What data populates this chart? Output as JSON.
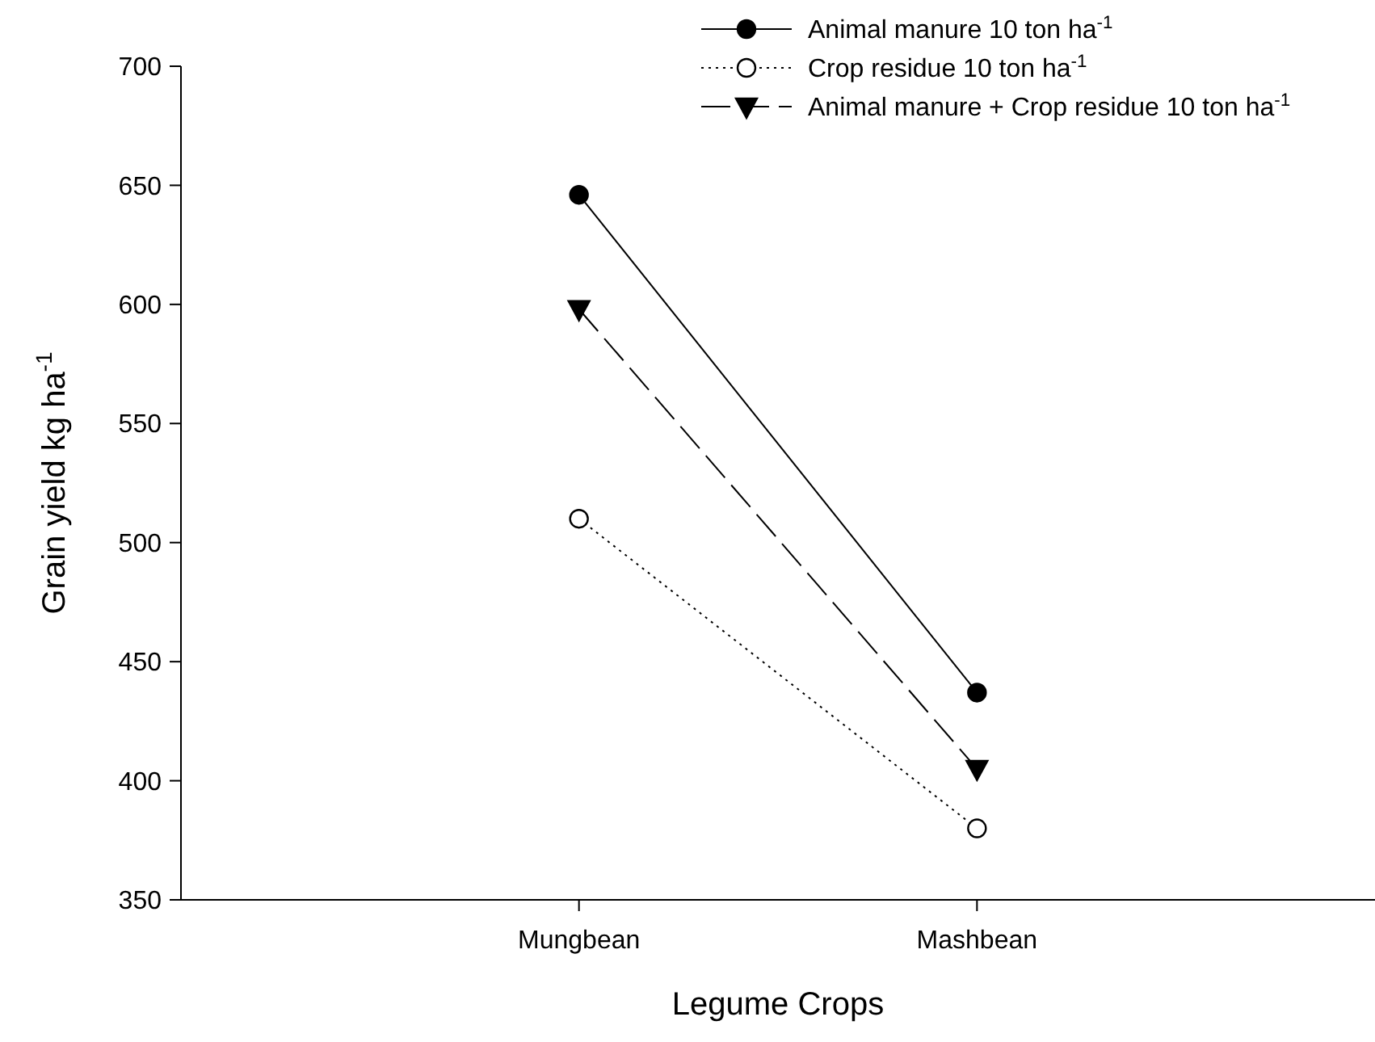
{
  "chart_data": {
    "type": "line",
    "xlabel": "Legume Crops",
    "ylabel": "Grain yield kg ha$^{-1}$",
    "categories": [
      "Mungbean",
      "Mashbean"
    ],
    "series": [
      {
        "name": "Animal manure 10 ton ha$^{-1}$",
        "color": "#000000",
        "values": [
          646,
          437
        ],
        "marker": "circle",
        "line_style": "solid"
      },
      {
        "name": "Crop residue 10 ton ha$^{-1}$",
        "color": "#000000",
        "values": [
          510,
          380
        ],
        "marker": "circle",
        "line_style": "dotted"
      },
      {
        "name": "Animal manure + Crop residue 10 ton ha$^{-1}$",
        "color": "#000000",
        "values": [
          598,
          405
        ],
        "marker": "triangle",
        "line_style": "dashed"
      }
    ],
    "ylim": [
      350,
      700
    ],
    "yticks": [
      350,
      400,
      450,
      500,
      550,
      600,
      650,
      700
    ],
    "grid": false,
    "legend": "top right"
  }
}
